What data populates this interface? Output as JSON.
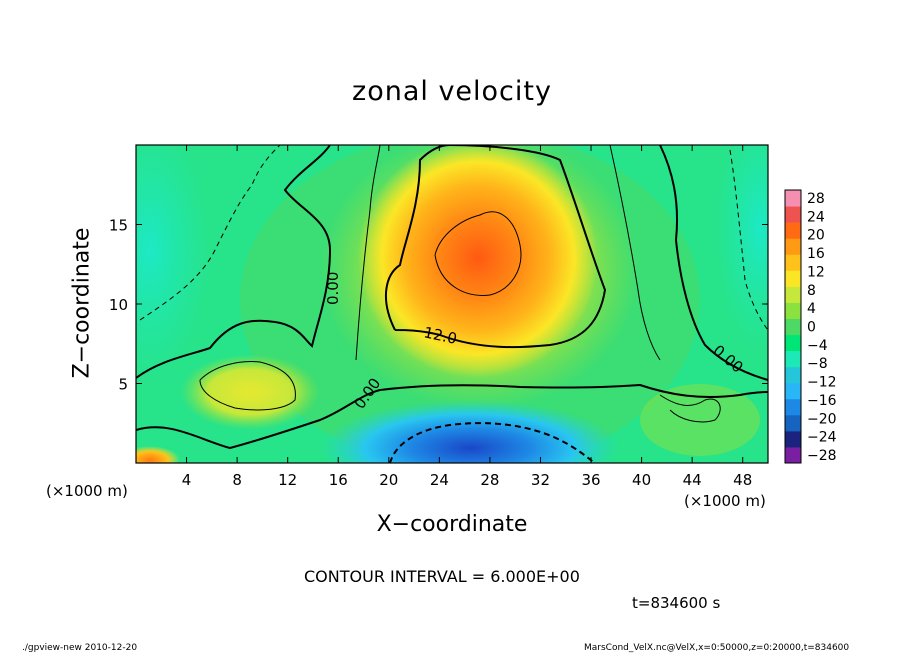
{
  "title": "zonal velocity",
  "x_unit_left": "(×1000 m)",
  "x_unit_right": "(×1000 m)",
  "contour_interval": "CONTOUR INTERVAL = 6.000E+00",
  "time_label": "t=834600 s",
  "footer_left": "./gpview-new  2010-12-20",
  "footer_right": "MarsCond_VelX.nc@VelX,x=0:50000,z=0:20000,t=834600",
  "colors": {
    "colorbar": [
      "#7b1fa2",
      "#1a237e",
      "#1565c0",
      "#1e88e5",
      "#29b6f6",
      "#26c6da",
      "#1de9b6",
      "#00e676",
      "#4cd964",
      "#8be13d",
      "#c6e83a",
      "#fbe626",
      "#ffc21a",
      "#ff9a14",
      "#ff6a12",
      "#ef5350",
      "#f48fb1"
    ]
  },
  "chart_data": {
    "type": "heatmap",
    "title": "zonal velocity",
    "xlabel": "X−coordinate",
    "ylabel": "Z−coordinate",
    "xlim": [
      0,
      50
    ],
    "ylim": [
      0,
      20
    ],
    "x_ticks": [
      4,
      8,
      12,
      16,
      20,
      24,
      28,
      32,
      36,
      40,
      44,
      48
    ],
    "y_ticks": [
      5,
      10,
      15
    ],
    "colorbar_levels": [
      28,
      24,
      20,
      16,
      12,
      8,
      4,
      0,
      -4,
      -8,
      -12,
      -16,
      -20,
      -24,
      -28
    ],
    "contour_labels": [
      "0.00",
      "12.0",
      "0.00",
      "0.00"
    ],
    "features": [
      {
        "name": "positive jet core",
        "x": 26.5,
        "z": 13,
        "peak": 20
      },
      {
        "name": "negative core near surface",
        "x": 27,
        "z": 1.5,
        "peak": -20
      },
      {
        "name": "small positive cell",
        "x": 9.5,
        "z": 4.5,
        "peak": 8
      }
    ]
  }
}
